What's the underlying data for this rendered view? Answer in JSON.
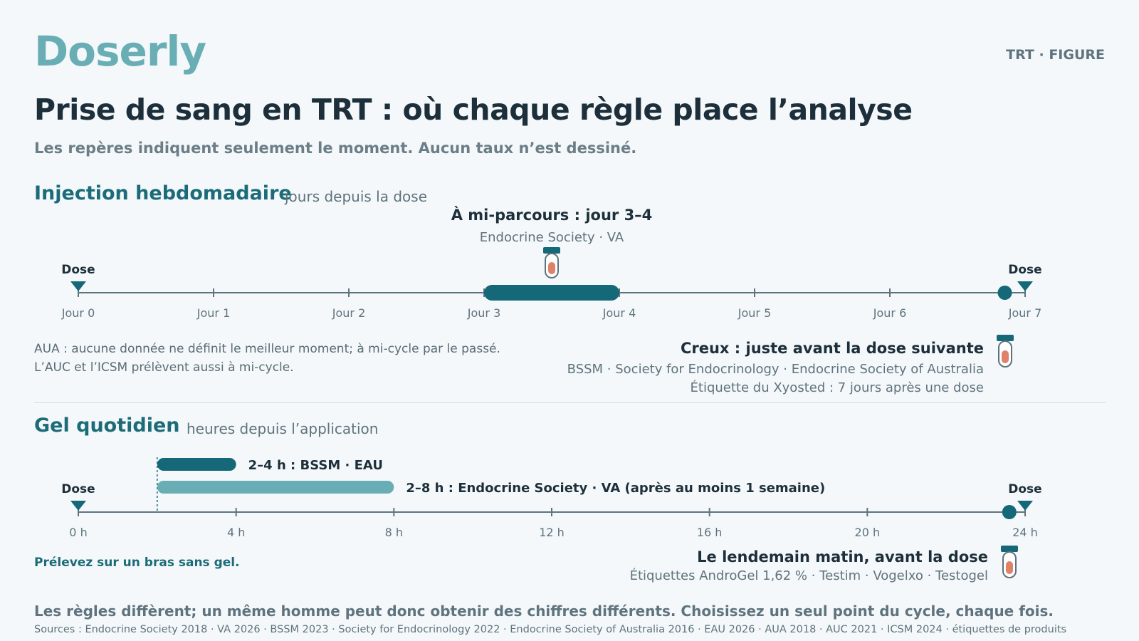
{
  "header": {
    "brand": "Doserly",
    "tag": "TRT · FIGURE",
    "title": "Prise de sang en TRT : où chaque règle place l’analyse",
    "subtitle": "Les repères indiquent seulement le moment. Aucun taux n’est dessiné."
  },
  "colors": {
    "accent": "#1b6b78",
    "bar_dark": "#156877",
    "bar_light": "#6aaeb5",
    "tube_blood": "#e0826a",
    "axis": "#5f737e"
  },
  "weekly": {
    "title": "Injection hebdomadaire",
    "axis_caption": "jours depuis la dose",
    "dose_label": "Dose",
    "ticks": [
      "Jour 0",
      "Jour 1",
      "Jour 2",
      "Jour 3",
      "Jour 4",
      "Jour 5",
      "Jour 6",
      "Jour 7"
    ],
    "window": {
      "start": 3,
      "end": 4
    },
    "tube_at": 3.5,
    "trough_dot_at": 6.85,
    "mid_heading": "À mi-parcours : jour 3–4",
    "mid_sources": "Endocrine Society · VA",
    "note_line1": "AUA : aucune donnée ne définit le meilleur moment; à mi-cycle par le passé.",
    "note_line2": "L’AUC et l’ICSM prélèvent aussi à mi-cycle.",
    "trough_heading": "Creux : juste avant la dose suivante",
    "trough_sources": "BSSM · Society for Endocrinology · Endocrine Society of Australia",
    "trough_label": "Étiquette du Xyosted : 7 jours après une dose"
  },
  "daily": {
    "title": "Gel quotidien",
    "axis_caption": "heures depuis l’application",
    "dose_label": "Dose",
    "ticks": [
      "0 h",
      "4 h",
      "8 h",
      "12 h",
      "16 h",
      "20 h",
      "24 h"
    ],
    "windows": [
      {
        "start": 2,
        "end": 4,
        "label": "2–4 h : BSSM · EAU",
        "tone": "dark"
      },
      {
        "start": 2,
        "end": 8,
        "label": "2–8 h : Endocrine Society · VA (après au moins 1 semaine)",
        "tone": "light"
      }
    ],
    "trough_dot_at": 23.6,
    "note": "Prélevez sur un bras sans gel.",
    "morning_heading": "Le lendemain matin, avant la dose",
    "morning_labels": "Étiquettes AndroGel 1,62 % · Testim · Vogelxo · Testogel"
  },
  "footer": {
    "main": "Les règles diffèrent; un même homme peut donc obtenir des chiffres différents. Choisissez un seul point du cycle, chaque fois.",
    "sources": "Sources : Endocrine Society 2018 · VA 2026 · BSSM 2023 · Society for Endocrinology 2022 · Endocrine Society of Australia 2016 · EAU 2026 · AUA 2018 · AUC 2021 · ICSM 2024 · étiquettes de produits"
  }
}
